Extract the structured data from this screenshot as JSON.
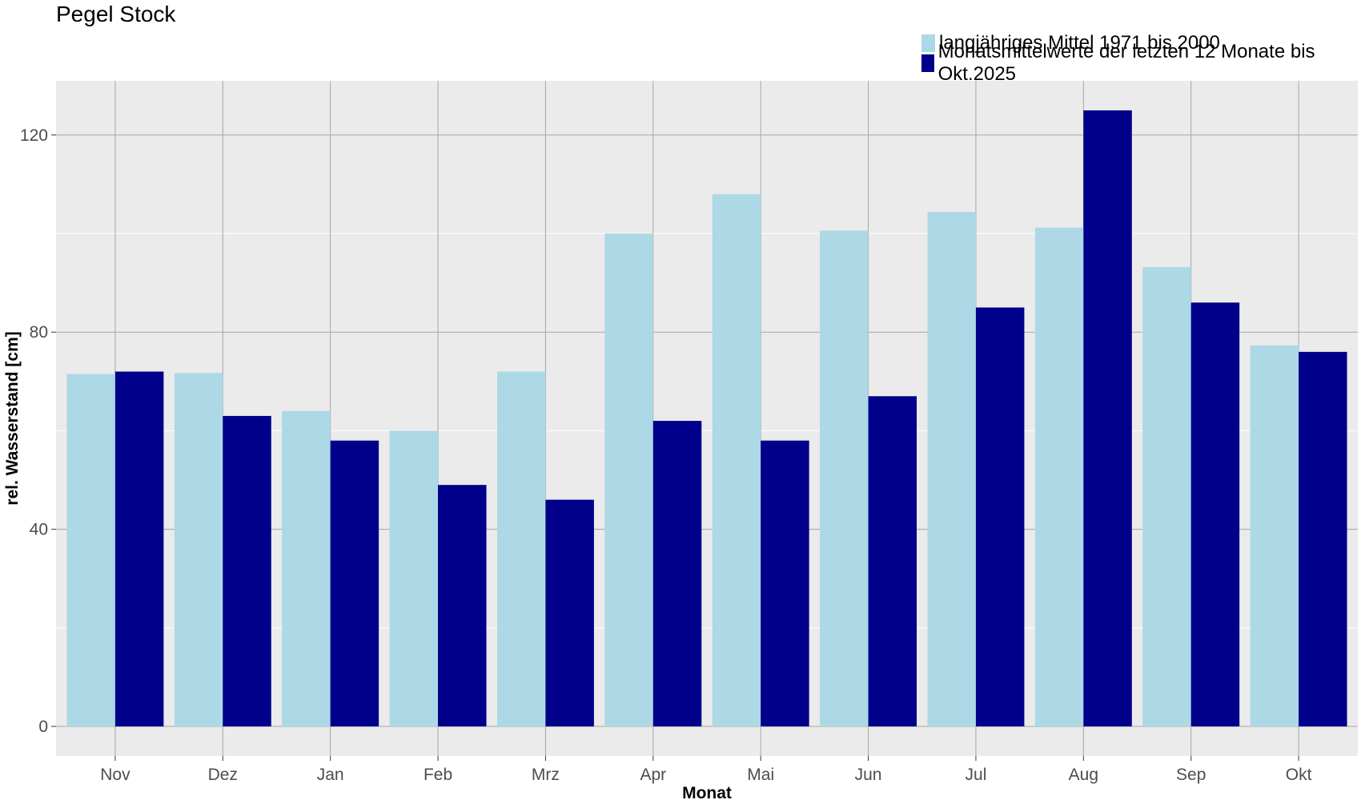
{
  "title": "Pegel Stock",
  "colors": {
    "panel": "#EBEBEB",
    "longterm": "#ADD8E6",
    "recent": "#00008B",
    "grid_major": "#A6A6A6",
    "grid_minor": "#FFFFFF"
  },
  "legend": [
    {
      "label": "langjähriges Mittel 1971 bis 2000",
      "color": "#ADD8E6"
    },
    {
      "label": "Monatsmittelwerte der letzten 12 Monate bis Okt.2025",
      "color": "#00008B"
    }
  ],
  "chart_data": {
    "type": "bar",
    "title": "Pegel Stock",
    "xlabel": "Monat",
    "ylabel": "rel. Wasserstand [cm]",
    "ylim": [
      -6,
      131
    ],
    "yticks": [
      0,
      40,
      80,
      120
    ],
    "grid": true,
    "legend_position": "top-right",
    "categories": [
      "Nov",
      "Dez",
      "Jan",
      "Feb",
      "Mrz",
      "Apr",
      "Mai",
      "Jun",
      "Jul",
      "Aug",
      "Sep",
      "Okt"
    ],
    "series": [
      {
        "name": "langjähriges Mittel 1971 bis 2000",
        "color": "#ADD8E6",
        "values": [
          71.5,
          71.7,
          64,
          60,
          72,
          100,
          108,
          100.6,
          104.4,
          101.2,
          93.2,
          77.3
        ]
      },
      {
        "name": "Monatsmittelwerte der letzten 12 Monate bis Okt.2025",
        "color": "#00008B",
        "values": [
          72,
          63,
          58,
          49,
          46,
          62,
          58,
          67,
          85,
          125,
          86,
          76
        ]
      }
    ]
  }
}
